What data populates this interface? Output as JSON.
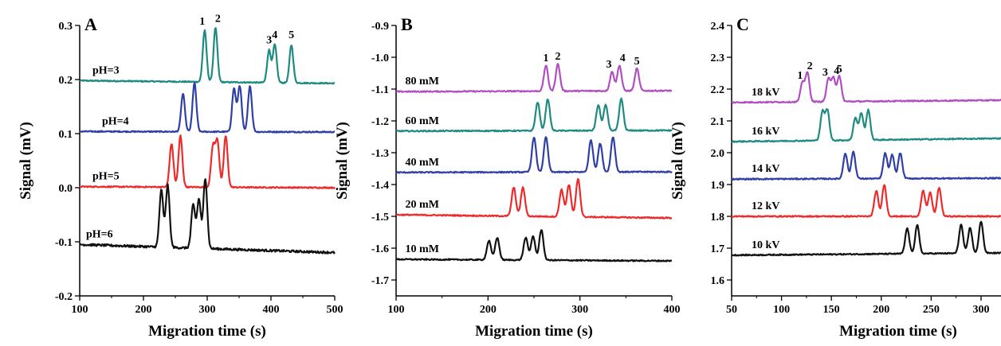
{
  "chart_data": [
    {
      "type": "line",
      "panel": "A",
      "xlabel": "Migration time (s)",
      "ylabel": "Signal (mV)",
      "xlim": [
        100,
        500
      ],
      "ylim": [
        -0.2,
        0.3
      ],
      "xticks": [
        100,
        200,
        300,
        400,
        500
      ],
      "yticks": [
        -0.2,
        -0.1,
        0.0,
        0.1,
        0.2,
        0.3
      ],
      "xtick_labels": [
        "100",
        "200",
        "300",
        "400",
        "500"
      ],
      "ytick_labels": [
        "-0.2",
        "-0.1",
        "0.0",
        "0.1",
        "0.2",
        "0.3"
      ],
      "peak_labels": [
        "1",
        "2",
        "3",
        "4",
        "5"
      ],
      "series": [
        {
          "name": "pH=3",
          "color": "#1e8a82",
          "baseline": 0.198,
          "end": 0.193,
          "peaks": [
            296,
            313,
            397,
            406,
            432
          ],
          "heights": [
            0.095,
            0.1,
            0.06,
            0.07,
            0.07
          ]
        },
        {
          "name": "pH=4",
          "color": "#2f3fa6",
          "baseline": 0.104,
          "end": 0.103,
          "peaks": [
            262,
            280,
            342,
            351,
            367
          ],
          "heights": [
            0.07,
            0.09,
            0.08,
            0.085,
            0.085
          ]
        },
        {
          "name": "pH=5",
          "color": "#ee2a2a",
          "baseline": 0.002,
          "end": 0.0,
          "peaks": [
            244,
            258,
            309,
            316,
            329
          ],
          "heights": [
            0.08,
            0.095,
            0.075,
            0.085,
            0.095
          ]
        },
        {
          "name": "pH=6",
          "color": "#111111",
          "baseline": -0.105,
          "end": -0.12,
          "peaks": [
            228,
            238,
            278,
            287,
            297
          ],
          "heights": [
            0.105,
            0.115,
            0.08,
            0.09,
            0.13
          ]
        }
      ]
    },
    {
      "type": "line",
      "panel": "B",
      "xlabel": "Migration time (s)",
      "ylabel": "Signal (mV)",
      "xlim": [
        100,
        400
      ],
      "ylim": [
        -1.75,
        -0.9
      ],
      "xticks": [
        100,
        200,
        300,
        400
      ],
      "yticks": [
        -1.7,
        -1.6,
        -1.5,
        -1.4,
        -1.3,
        -1.2,
        -1.1,
        -1.0,
        -0.9
      ],
      "xtick_labels": [
        "100",
        "200",
        "300",
        "400"
      ],
      "ytick_labels": [
        "-1.7",
        "-1.6",
        "-1.5",
        "-1.4",
        "-1.3",
        "-1.2",
        "-1.1",
        "-1.0",
        "-0.9"
      ],
      "peak_labels": [
        "1",
        "2",
        "3",
        "4",
        "5"
      ],
      "series": [
        {
          "name": "80 mM",
          "color": "#b14fc0",
          "baseline": -1.108,
          "end": -1.105,
          "peaks": [
            263,
            276,
            335,
            343,
            362
          ],
          "heights": [
            0.08,
            0.085,
            0.06,
            0.08,
            0.07
          ]
        },
        {
          "name": "60 mM",
          "color": "#1e8a82",
          "baseline": -1.232,
          "end": -1.23,
          "peaks": [
            254,
            265,
            320,
            328,
            345
          ],
          "heights": [
            0.09,
            0.1,
            0.08,
            0.08,
            0.1
          ]
        },
        {
          "name": "40 mM",
          "color": "#2f3fa6",
          "baseline": -1.362,
          "end": -1.36,
          "peaks": [
            250,
            263,
            312,
            322,
            336
          ],
          "heights": [
            0.11,
            0.11,
            0.1,
            0.09,
            0.11
          ]
        },
        {
          "name": "20 mM",
          "color": "#ee2a2a",
          "baseline": -1.495,
          "end": -1.505,
          "peaks": [
            228,
            238,
            280,
            288,
            298
          ],
          "heights": [
            0.09,
            0.09,
            0.085,
            0.1,
            0.12
          ]
        },
        {
          "name": "10 mM",
          "color": "#111111",
          "baseline": -1.635,
          "end": -1.64,
          "peaks": [
            201,
            210,
            241,
            249,
            258
          ],
          "heights": [
            0.06,
            0.07,
            0.07,
            0.075,
            0.095
          ]
        }
      ]
    },
    {
      "type": "line",
      "panel": "C",
      "xlabel": "Migration time (s)",
      "ylabel": "Signal (mV)",
      "xlim": [
        50,
        320
      ],
      "ylim": [
        1.55,
        2.4
      ],
      "xticks": [
        50,
        100,
        150,
        200,
        250,
        300
      ],
      "yticks": [
        1.6,
        1.7,
        1.8,
        1.9,
        2.0,
        2.1,
        2.2,
        2.3,
        2.4
      ],
      "xtick_labels": [
        "50",
        "100",
        "150",
        "200",
        "250",
        "300"
      ],
      "ytick_labels": [
        "1.6",
        "1.7",
        "1.8",
        "1.9",
        "2.0",
        "2.1",
        "2.2",
        "2.3",
        "2.4"
      ],
      "peak_labels": [
        "1",
        "2",
        "3",
        "4",
        "5"
      ],
      "series": [
        {
          "name": "18 kV",
          "color": "#b14fc0",
          "baseline": 2.158,
          "end": 2.165,
          "peaks": [
            121,
            126,
            147,
            152,
            158
          ],
          "heights": [
            0.06,
            0.09,
            0.07,
            0.075,
            0.08
          ]
        },
        {
          "name": "16 kV",
          "color": "#1e8a82",
          "baseline": 2.035,
          "end": 2.045,
          "peaks": [
            141,
            146,
            174,
            180,
            187
          ],
          "heights": [
            0.09,
            0.095,
            0.07,
            0.085,
            0.095
          ]
        },
        {
          "name": "14 kV",
          "color": "#2f3fa6",
          "baseline": 1.917,
          "end": 1.92,
          "peaks": [
            164,
            172,
            204,
            211,
            219
          ],
          "heights": [
            0.08,
            0.085,
            0.08,
            0.075,
            0.08
          ]
        },
        {
          "name": "12 kV",
          "color": "#ee2a2a",
          "baseline": 1.8,
          "end": 1.8,
          "peaks": [
            195,
            203,
            242,
            249,
            258
          ],
          "heights": [
            0.08,
            0.1,
            0.08,
            0.075,
            0.09
          ]
        },
        {
          "name": "10 kV",
          "color": "#111111",
          "baseline": 1.678,
          "end": 1.685,
          "peaks": [
            226,
            236,
            280,
            289,
            300
          ],
          "heights": [
            0.08,
            0.09,
            0.09,
            0.08,
            0.1
          ]
        }
      ]
    }
  ]
}
